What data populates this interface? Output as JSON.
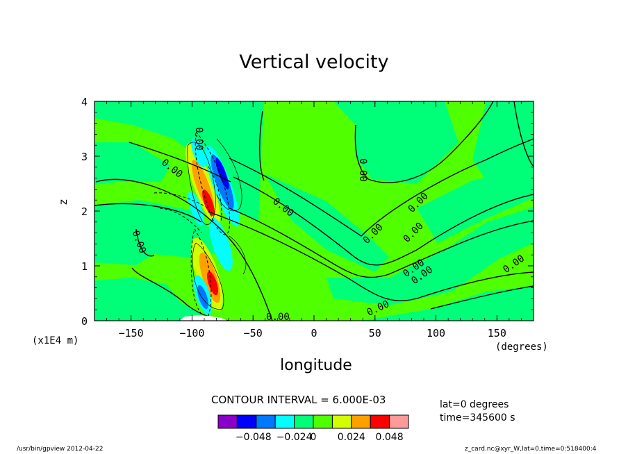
{
  "chart_data": {
    "type": "heatmap",
    "title": "Vertical velocity",
    "xlabel": "longitude",
    "ylabel": "z",
    "x_units": "(degrees)",
    "y_units": "(x1E4 m)",
    "xlim": [
      -180,
      180
    ],
    "ylim": [
      0,
      4
    ],
    "x_ticks": [
      -150,
      -100,
      -50,
      0,
      50,
      100,
      150
    ],
    "y_ticks": [
      0,
      1,
      2,
      3,
      4
    ],
    "contour_interval_text": "CONTOUR INTERVAL = 6.000E-03",
    "contour_labels": [
      "0.00"
    ],
    "colorbar": {
      "colors": [
        "#8b00c8",
        "#0000ff",
        "#0078ff",
        "#00ffff",
        "#00ff78",
        "#50ff00",
        "#d2ff00",
        "#ffa000",
        "#ff0000",
        "#ff9a9a"
      ],
      "tick_labels": [
        "−0.048",
        "−0.024",
        "0",
        "0.024",
        "0.048"
      ]
    },
    "annotations": [
      "lat=0 degrees",
      "time=345600 s"
    ],
    "footer_left": "/usr/bin/gpview   2012-04-22",
    "footer_right": "z_card.nc@xyr_W,lat=0,time=0:518400:4"
  }
}
